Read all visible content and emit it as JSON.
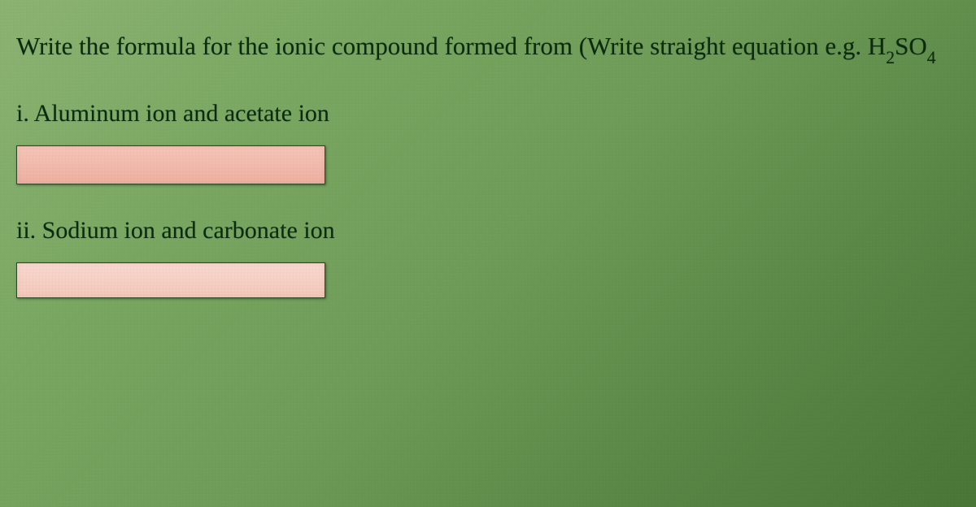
{
  "intro": {
    "prefix": "Write the formula for the ionic compound formed from (Write straight equation e.g. H",
    "sub": "2",
    "mid": "SO",
    "sub2": "4",
    "suffix": ""
  },
  "questions": {
    "q1": {
      "label": "i. Aluminum ion and acetate ion",
      "value": ""
    },
    "q2": {
      "label": "ii. Sodium ion and carbonate ion",
      "value": ""
    }
  },
  "colors": {
    "text": "#0a2b0e",
    "input_bg": "#f2b8a8",
    "input_border": "#2a4a2a"
  }
}
